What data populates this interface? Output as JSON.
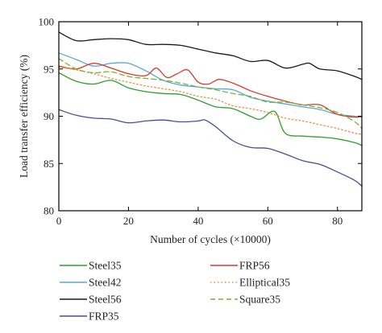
{
  "chart_data": {
    "type": "line",
    "xlabel": "Number of cycles (×10000)",
    "ylabel": "Load transfer efficiency (%)",
    "xlim": [
      0,
      87
    ],
    "ylim": [
      80,
      100
    ],
    "xticks": [
      0,
      20,
      40,
      60,
      80
    ],
    "yticks": [
      80,
      85,
      90,
      95,
      100
    ],
    "grid": false,
    "legend_position": "bottom",
    "series": [
      {
        "name": "Steel35",
        "color": "#2aa02a",
        "dash": "solid",
        "x": [
          0,
          5,
          10,
          15,
          20,
          25,
          30,
          35,
          40,
          45,
          50,
          55,
          58,
          62,
          65,
          70,
          75,
          80,
          85,
          87
        ],
        "y": [
          94.6,
          93.7,
          93.4,
          93.8,
          93.0,
          92.6,
          92.4,
          92.3,
          91.7,
          91.0,
          90.8,
          90.0,
          89.7,
          90.5,
          88.2,
          87.9,
          87.8,
          87.6,
          87.2,
          86.9
        ]
      },
      {
        "name": "Steel42",
        "color": "#5aa7d8",
        "dash": "solid",
        "x": [
          0,
          5,
          10,
          15,
          20,
          25,
          30,
          35,
          40,
          45,
          50,
          55,
          60,
          65,
          70,
          75,
          80,
          85,
          87
        ],
        "y": [
          96.7,
          96.0,
          95.3,
          95.6,
          95.6,
          94.8,
          93.8,
          93.3,
          93.1,
          92.9,
          92.8,
          92.0,
          91.6,
          91.3,
          91.0,
          90.7,
          90.2,
          90.0,
          89.9
        ]
      },
      {
        "name": "Steel56",
        "color": "#1a1a1a",
        "dash": "solid",
        "x": [
          0,
          5,
          10,
          15,
          20,
          25,
          30,
          35,
          40,
          45,
          50,
          55,
          60,
          65,
          70,
          72,
          75,
          80,
          85,
          87
        ],
        "y": [
          98.9,
          98.0,
          98.1,
          98.2,
          98.1,
          97.6,
          97.6,
          97.5,
          97.1,
          96.7,
          96.4,
          95.8,
          95.9,
          95.1,
          95.5,
          95.6,
          95.0,
          94.8,
          94.2,
          93.9
        ]
      },
      {
        "name": "FRP35",
        "color": "#4a4a9c",
        "dash": "solid",
        "x": [
          0,
          5,
          10,
          15,
          20,
          25,
          30,
          35,
          40,
          42,
          45,
          50,
          55,
          60,
          65,
          70,
          75,
          80,
          85,
          87
        ],
        "y": [
          90.7,
          90.1,
          89.8,
          89.7,
          89.3,
          89.5,
          89.6,
          89.4,
          89.5,
          89.6,
          88.9,
          87.4,
          86.7,
          86.6,
          86.0,
          85.3,
          84.9,
          84.1,
          83.2,
          82.6
        ]
      },
      {
        "name": "FRP56",
        "color": "#d63a2a",
        "dash": "solid",
        "x": [
          0,
          5,
          10,
          15,
          20,
          25,
          28,
          31,
          34,
          37,
          40,
          43,
          46,
          50,
          55,
          60,
          65,
          70,
          75,
          80,
          85,
          87
        ],
        "y": [
          95.3,
          95.0,
          95.6,
          95.1,
          94.5,
          94.3,
          95.1,
          94.1,
          94.5,
          94.9,
          93.6,
          93.4,
          93.9,
          93.5,
          92.7,
          92.1,
          91.6,
          91.2,
          91.2,
          90.2,
          89.9,
          90.0
        ]
      },
      {
        "name": "Elliptical35",
        "color": "#f08a3c",
        "dash": "dotted",
        "x": [
          0,
          5,
          10,
          15,
          20,
          25,
          30,
          35,
          40,
          45,
          50,
          55,
          60,
          65,
          70,
          75,
          80,
          85,
          87
        ],
        "y": [
          95.2,
          94.9,
          94.5,
          94.0,
          93.6,
          93.2,
          92.9,
          92.6,
          92.1,
          91.8,
          91.1,
          90.8,
          90.4,
          89.8,
          89.5,
          89.1,
          88.7,
          88.2,
          88.1
        ]
      },
      {
        "name": "Square35",
        "color": "#76b52a",
        "dash": "dashed",
        "x": [
          0,
          5,
          10,
          15,
          20,
          25,
          30,
          35,
          40,
          45,
          50,
          55,
          60,
          65,
          70,
          75,
          80,
          85,
          87
        ],
        "y": [
          96.1,
          95.0,
          94.6,
          94.7,
          94.2,
          94.0,
          93.8,
          93.5,
          93.1,
          92.8,
          92.4,
          92.1,
          91.5,
          91.5,
          91.2,
          90.9,
          90.4,
          89.4,
          88.7
        ]
      }
    ],
    "legend": [
      {
        "series": 0,
        "label": "Steel35"
      },
      {
        "series": 4,
        "label": "FRP56"
      },
      {
        "series": 1,
        "label": "Steel42"
      },
      {
        "series": 5,
        "label": "Elliptical35"
      },
      {
        "series": 2,
        "label": "Steel56"
      },
      {
        "series": 6,
        "label": "Square35"
      },
      {
        "series": 3,
        "label": "FRP35"
      }
    ]
  }
}
